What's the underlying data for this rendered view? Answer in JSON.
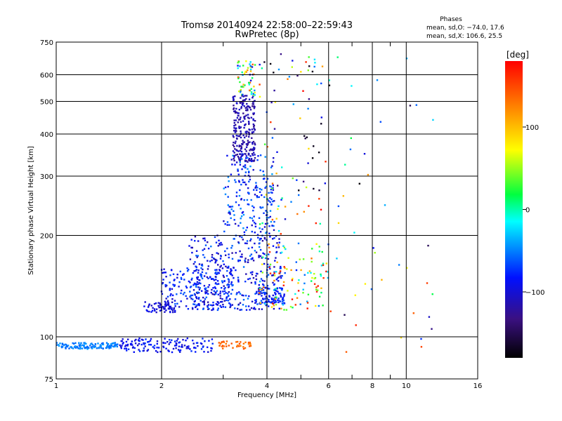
{
  "chart_data": {
    "type": "scatter",
    "title": "Tromsø 20140924 22:58:00–22:59:43",
    "subtitle": "RwPretec (8p)",
    "phase_box": {
      "heading": "Phases",
      "line_o": "mean, sd,O: −74.0, 17.6",
      "line_x": "mean, sd,X: 106.6, 25.5"
    },
    "xlabel": "Frequency [MHz]",
    "ylabel": "Stationary phase Virtual Height [km]",
    "x_scale": "log",
    "y_scale": "log",
    "xlim": [
      1,
      16
    ],
    "ylim": [
      75,
      750
    ],
    "x_ticks": [
      {
        "v": 1,
        "label": "1"
      },
      {
        "v": 2,
        "label": "2"
      },
      {
        "v": 4,
        "label": "4"
      },
      {
        "v": 6,
        "label": "6"
      },
      {
        "v": 8,
        "label": "8"
      },
      {
        "v": 10,
        "label": "10"
      },
      {
        "v": 16,
        "label": "16"
      }
    ],
    "x_minor": [
      3,
      5,
      7,
      9
    ],
    "y_ticks": [
      {
        "v": 75,
        "label": "75"
      },
      {
        "v": 100,
        "label": "100"
      },
      {
        "v": 200,
        "label": "200"
      },
      {
        "v": 300,
        "label": "300"
      },
      {
        "v": 400,
        "label": "400"
      },
      {
        "v": 500,
        "label": "500"
      },
      {
        "v": 600,
        "label": "600"
      },
      {
        "v": 750,
        "label": "750"
      }
    ],
    "grid": true,
    "colorbar": {
      "label": "[deg]",
      "range": [
        -180,
        180
      ],
      "ticks": [
        {
          "v": 100,
          "label": "100"
        },
        {
          "v": 0,
          "label": "0"
        },
        {
          "v": -100,
          "label": "−100"
        }
      ]
    },
    "clusters": [
      {
        "x": [
          1.0,
          1.5
        ],
        "y": [
          92,
          96
        ],
        "phase": [
          -60,
          -40
        ],
        "n": 120
      },
      {
        "x": [
          1.5,
          2.8
        ],
        "y": [
          90,
          99
        ],
        "phase": [
          -105,
          -70
        ],
        "n": 140
      },
      {
        "x": [
          1.78,
          2.2
        ],
        "y": [
          118,
          128
        ],
        "phase": [
          -110,
          -85
        ],
        "n": 60
      },
      {
        "x": [
          2.0,
          3.2
        ],
        "y": [
          120,
          160
        ],
        "phase": [
          -110,
          -60
        ],
        "n": 200
      },
      {
        "x": [
          2.4,
          4.4
        ],
        "y": [
          120,
          200
        ],
        "phase": [
          -120,
          -50
        ],
        "n": 360
      },
      {
        "x": [
          3.0,
          4.2
        ],
        "y": [
          200,
          350
        ],
        "phase": [
          -110,
          -40
        ],
        "n": 200
      },
      {
        "x": [
          3.2,
          3.7
        ],
        "y": [
          330,
          520
        ],
        "phase": [
          -130,
          -100
        ],
        "n": 240
      },
      {
        "x": [
          3.3,
          3.7
        ],
        "y": [
          520,
          660
        ],
        "phase": [
          -110,
          160
        ],
        "n": 60
      },
      {
        "x": [
          3.7,
          4.5
        ],
        "y": [
          125,
          140
        ],
        "phase": [
          -100,
          -60
        ],
        "n": 90
      },
      {
        "x": [
          3.8,
          6.0
        ],
        "y": [
          120,
          190
        ],
        "phase": [
          -80,
          180
        ],
        "n": 120
      },
      {
        "x": [
          3.8,
          5.8
        ],
        "y": [
          200,
          700
        ],
        "phase": [
          -180,
          180
        ],
        "n": 90
      },
      {
        "x": [
          2.9,
          3.6
        ],
        "y": [
          92,
          97
        ],
        "phase": [
          120,
          150
        ],
        "n": 40
      },
      {
        "x": [
          5.8,
          12.0
        ],
        "y": [
          85,
          700
        ],
        "phase": [
          -180,
          180
        ],
        "n": 45
      }
    ]
  }
}
